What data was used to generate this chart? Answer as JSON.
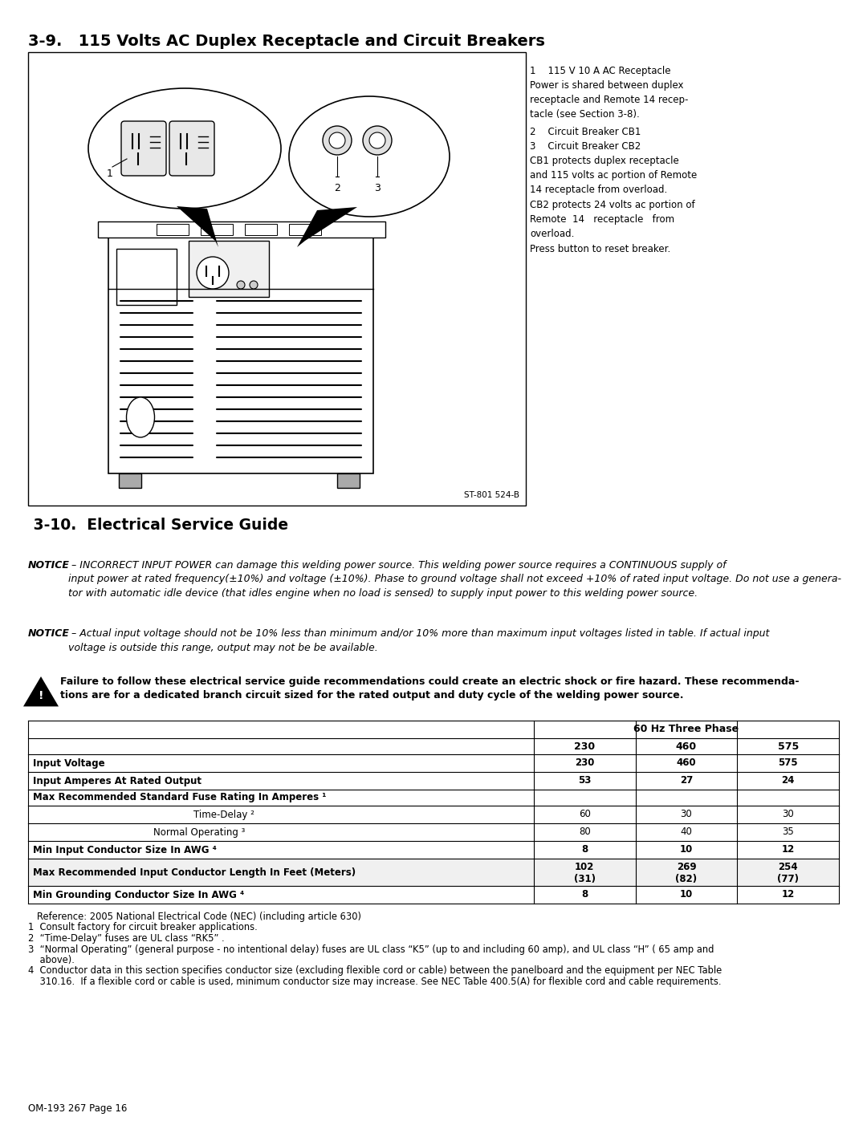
{
  "section1_title": "3-9.   115 Volts AC Duplex Receptacle and Circuit Breakers",
  "section2_title": " 3-10.  Electrical Service Guide",
  "notice1_bold": "NOTICE",
  "notice1_text": " – INCORRECT INPUT POWER can damage this welding power source. This welding power source requires a CONTINUOUS supply of input power at rated frequency(±10%) and voltage (±10%). Phase to ground voltage shall not exceed +10% of rated input voltage. Do not use a genera-tor with automatic idle device (that idles engine when no load is sensed) to supply input power to this welding power source.",
  "notice2_bold": "NOTICE",
  "notice2_text": " – Actual input voltage should not be 10% less than minimum and/or 10% more than maximum input voltages listed in table. If actual input voltage is outside this range, output may not be be available.",
  "warning_text_line1": "Failure to follow these electrical service guide recommendations could create an electric shock or fire hazard. These recommenda-",
  "warning_text_line2": "tions are for a dedicated branch circuit sized for the rated output and duty cycle of the welding power source.",
  "table_header_col": "60 Hz Three Phase",
  "table_cols": [
    "230",
    "460",
    "575"
  ],
  "table_rows": [
    {
      "label": "Input Voltage",
      "values": [
        "230",
        "460",
        "575"
      ],
      "bold": true,
      "shaded": false,
      "indent": 0
    },
    {
      "label": "Input Amperes At Rated Output",
      "values": [
        "53",
        "27",
        "24"
      ],
      "bold": true,
      "shaded": false,
      "indent": 0
    },
    {
      "label": "Max Recommended Standard Fuse Rating In Amperes ¹",
      "values": [
        "",
        "",
        ""
      ],
      "bold": true,
      "shaded": false,
      "indent": 0
    },
    {
      "label": "Time-Delay ²",
      "values": [
        "60",
        "30",
        "30"
      ],
      "bold": false,
      "shaded": false,
      "indent": 200
    },
    {
      "label": "Normal Operating ³",
      "values": [
        "80",
        "40",
        "35"
      ],
      "bold": false,
      "shaded": false,
      "indent": 150
    },
    {
      "label": "Min Input Conductor Size In AWG ⁴",
      "values": [
        "8",
        "10",
        "12"
      ],
      "bold": true,
      "shaded": false,
      "indent": 0
    },
    {
      "label": "Max Recommended Input Conductor Length In Feet (Meters)",
      "values": [
        "102\n(31)",
        "269\n(82)",
        "254\n(77)"
      ],
      "bold": true,
      "shaded": true,
      "indent": 0
    },
    {
      "label": "Min Grounding Conductor Size In AWG ⁴",
      "values": [
        "8",
        "10",
        "12"
      ],
      "bold": true,
      "shaded": false,
      "indent": 0
    }
  ],
  "footnote0": "   Reference: 2005 National Electrical Code (NEC) (including article 630)",
  "footnote1": "1  Consult factory for circuit breaker applications.",
  "footnote2": "2  “Time-Delay” fuses are UL class “RK5” .",
  "footnote3a": "3  “Normal Operating” (general purpose - no intentional delay) fuses are UL class “K5” (up to and including 60 amp), and UL class “H” ( 65 amp and",
  "footnote3b": "    above).",
  "footnote4a": "4  Conductor data in this section specifies conductor size (excluding flexible cord or cable) between the panelboard and the equipment per NEC Table",
  "footnote4b": "    310.16.  If a flexible cord or cable is used, minimum conductor size may increase. See NEC Table 400.5(A) for flexible cord and cable requirements.",
  "page_label": "OM-193 267 Page 16",
  "image_label": "ST-801 524-B",
  "bg_color": "#ffffff",
  "text_color": "#000000"
}
